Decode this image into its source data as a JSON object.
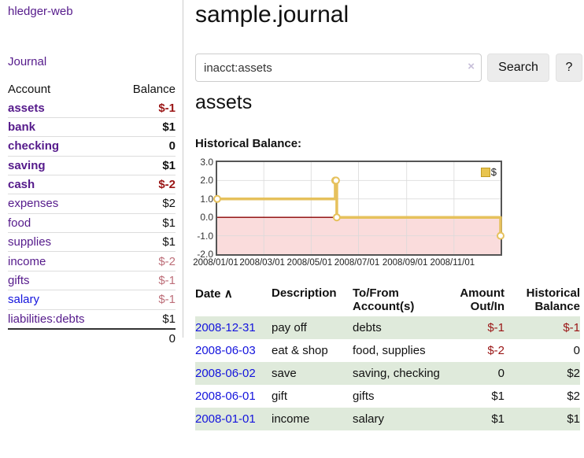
{
  "app": {
    "title": "hledger-web"
  },
  "theme": {
    "link_purple": "#551A8B",
    "link_blue": "#1414dd",
    "negative_strong": "#9a1515",
    "negative_muted": "#bd6e79",
    "row_green": "#dfeadb",
    "button_bg": "#ececec"
  },
  "sidebar": {
    "journal_link": "Journal",
    "accounts": {
      "col_account": "Account",
      "col_balance": "Balance",
      "rows": [
        {
          "name": "assets",
          "balance": "$-1",
          "level": 1,
          "bold": true,
          "neg": "strong",
          "link": "purple"
        },
        {
          "name": "bank",
          "balance": "$1",
          "level": 2,
          "bold": true,
          "neg": "none",
          "link": "purple"
        },
        {
          "name": "checking",
          "balance": "0",
          "level": 3,
          "bold": true,
          "neg": "none",
          "link": "purple"
        },
        {
          "name": "saving",
          "balance": "$1",
          "level": 3,
          "bold": true,
          "neg": "none",
          "link": "purple"
        },
        {
          "name": "cash",
          "balance": "$-2",
          "level": 2,
          "bold": true,
          "neg": "strong",
          "link": "purple"
        },
        {
          "name": "expenses",
          "balance": "$2",
          "level": 1,
          "bold": false,
          "neg": "none",
          "link": "purple"
        },
        {
          "name": "food",
          "balance": "$1",
          "level": 2,
          "bold": false,
          "neg": "none",
          "link": "purple"
        },
        {
          "name": "supplies",
          "balance": "$1",
          "level": 2,
          "bold": false,
          "neg": "none",
          "link": "purple"
        },
        {
          "name": "income",
          "balance": "$-2",
          "level": 1,
          "bold": false,
          "neg": "muted",
          "link": "purple"
        },
        {
          "name": "gifts",
          "balance": "$-1",
          "level": 2,
          "bold": false,
          "neg": "muted",
          "link": "purple"
        },
        {
          "name": "salary",
          "balance": "$-1",
          "level": 2,
          "bold": false,
          "neg": "muted",
          "link": "blue"
        },
        {
          "name": "liabilities:debts",
          "balance": "$1",
          "level": 1,
          "bold": false,
          "neg": "none",
          "link": "purple"
        }
      ],
      "total": "0"
    }
  },
  "main": {
    "title": "sample.journal",
    "search": {
      "value": "inacct:assets",
      "clear_icon": "×",
      "search_button": "Search",
      "help_button": "?"
    },
    "account_heading": "assets",
    "chart_title": "Historical Balance:"
  },
  "chart_data": {
    "type": "line",
    "step": "after",
    "title": "Historical Balance:",
    "legend_label": "$",
    "legend_position": "top-right",
    "grid": true,
    "x_range": [
      "2008-01-01",
      "2008-12-31"
    ],
    "ylim": [
      -2,
      3
    ],
    "yticks": [
      "3.0",
      "2.0",
      "1.0",
      "0.0",
      "-1.0",
      "-2.0"
    ],
    "ytick_values": [
      3,
      2,
      1,
      0,
      -1,
      -2
    ],
    "xticks": [
      {
        "label": "2008/01/01",
        "date": "2008-01-01"
      },
      {
        "label": "2008/03/01",
        "date": "2008-03-01"
      },
      {
        "label": "2008/05/01",
        "date": "2008-05-01"
      },
      {
        "label": "2008/07/01",
        "date": "2008-07-01"
      },
      {
        "label": "2008/09/01",
        "date": "2008-09-01"
      },
      {
        "label": "2008/11/01",
        "date": "2008-11-01"
      }
    ],
    "series": [
      {
        "name": "$",
        "points": [
          {
            "date": "2008-01-01",
            "value": 1
          },
          {
            "date": "2008-06-01",
            "value": 2
          },
          {
            "date": "2008-06-02",
            "value": 2
          },
          {
            "date": "2008-06-03",
            "value": 0
          },
          {
            "date": "2008-12-31",
            "value": -1
          }
        ]
      }
    ],
    "colors": {
      "line": "#e6c15c",
      "marker_fill": "#ffffff",
      "legend_fill": "#e8c44f",
      "legend_border": "#c19b25",
      "negative_region": "#fadcdc",
      "zero_line": "#8b0000",
      "grid": "#d9d9d9",
      "border": "#555555"
    }
  },
  "transactions": {
    "headers": {
      "date": "Date",
      "sort_icon": "∧",
      "description": "Description",
      "accounts": "To/From Account(s)",
      "amount": "Amount Out/In",
      "balance": "Historical Balance"
    },
    "rows": [
      {
        "date": "2008-12-31",
        "description": "pay off",
        "accounts": "debts",
        "amount": "$-1",
        "amount_neg": true,
        "balance": "$-1",
        "balance_neg": true
      },
      {
        "date": "2008-06-03",
        "description": "eat & shop",
        "accounts": "food, supplies",
        "amount": "$-2",
        "amount_neg": true,
        "balance": "0",
        "balance_neg": false
      },
      {
        "date": "2008-06-02",
        "description": "save",
        "accounts": "saving, checking",
        "amount": "0",
        "amount_neg": false,
        "balance": "$2",
        "balance_neg": false
      },
      {
        "date": "2008-06-01",
        "description": "gift",
        "accounts": "gifts",
        "amount": "$1",
        "amount_neg": false,
        "balance": "$2",
        "balance_neg": false
      },
      {
        "date": "2008-01-01",
        "description": "income",
        "accounts": "salary",
        "amount": "$1",
        "amount_neg": false,
        "balance": "$1",
        "balance_neg": false
      }
    ]
  }
}
